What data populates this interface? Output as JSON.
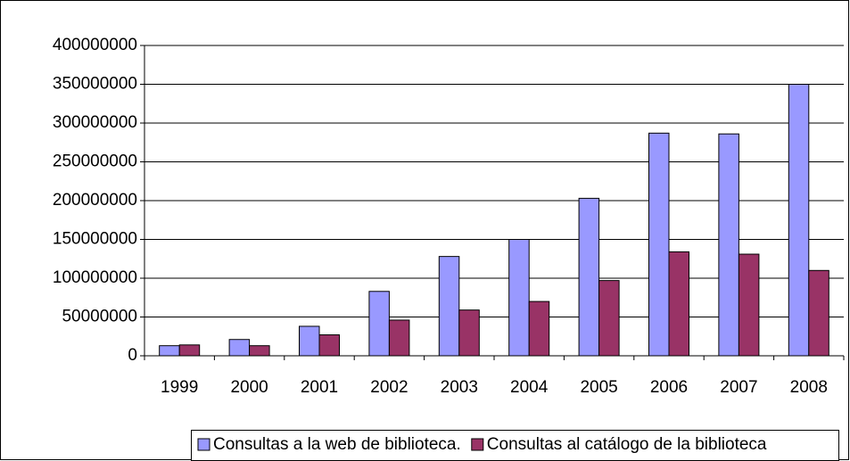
{
  "chart_data": {
    "type": "bar",
    "categories": [
      "1999",
      "2000",
      "2001",
      "2002",
      "2003",
      "2004",
      "2005",
      "2006",
      "2007",
      "2008"
    ],
    "series": [
      {
        "name": "Consultas a la web de biblioteca.",
        "color": "#9999ff",
        "values": [
          13000000,
          21000000,
          38000000,
          83000000,
          128000000,
          150000000,
          203000000,
          287000000,
          286000000,
          350000000
        ]
      },
      {
        "name": "Consultas al catálogo de la biblioteca",
        "color": "#993366",
        "values": [
          14000000,
          13000000,
          27000000,
          46000000,
          59000000,
          70000000,
          97000000,
          134000000,
          131000000,
          110000000
        ]
      }
    ],
    "ylim": [
      0,
      400000000
    ],
    "yticks": [
      0,
      50000000,
      100000000,
      150000000,
      200000000,
      250000000,
      300000000,
      350000000,
      400000000
    ],
    "grid": true,
    "legend": "bottom"
  }
}
